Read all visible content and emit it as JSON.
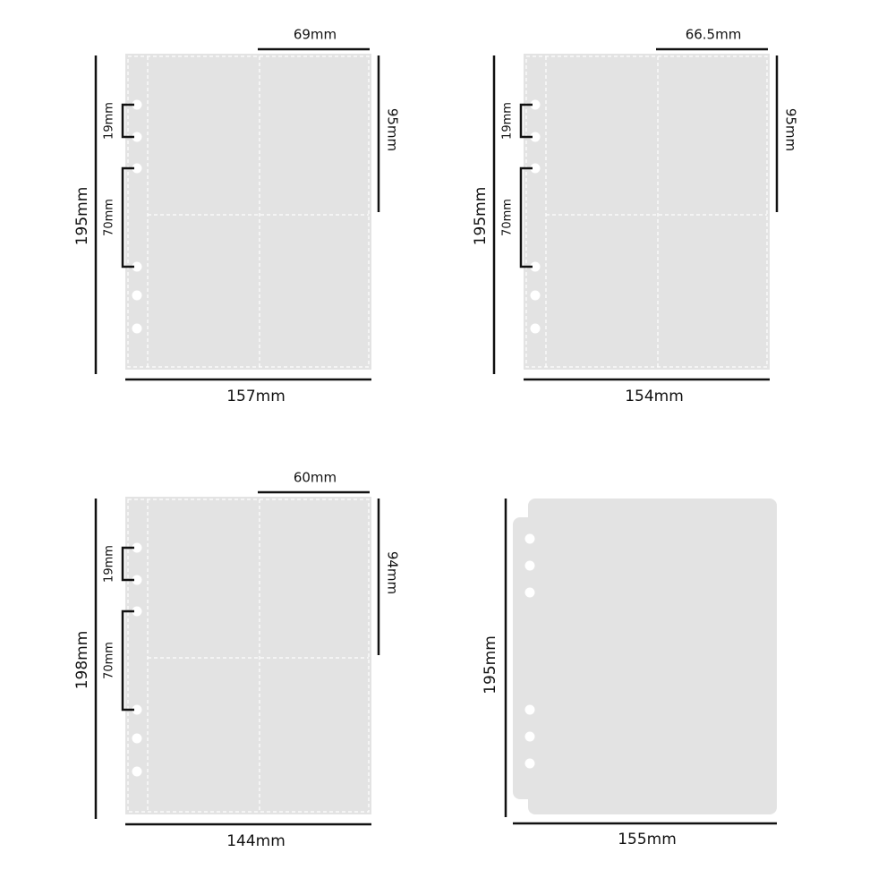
{
  "panels": [
    {
      "width": "157mm",
      "height": "195mm",
      "pocket_width": "69mm",
      "pocket_height": "95mm",
      "hole_spacing": "19mm",
      "hole_span": "70mm"
    },
    {
      "width": "154mm",
      "height": "195mm",
      "pocket_width": "66.5mm",
      "pocket_height": "95mm",
      "hole_spacing": "19mm",
      "hole_span": "70mm"
    },
    {
      "width": "144mm",
      "height": "198mm",
      "pocket_width": "60mm",
      "pocket_height": "94mm",
      "hole_spacing": "19mm",
      "hole_span": "70mm"
    },
    {
      "width": "155mm",
      "height": "195mm"
    }
  ]
}
